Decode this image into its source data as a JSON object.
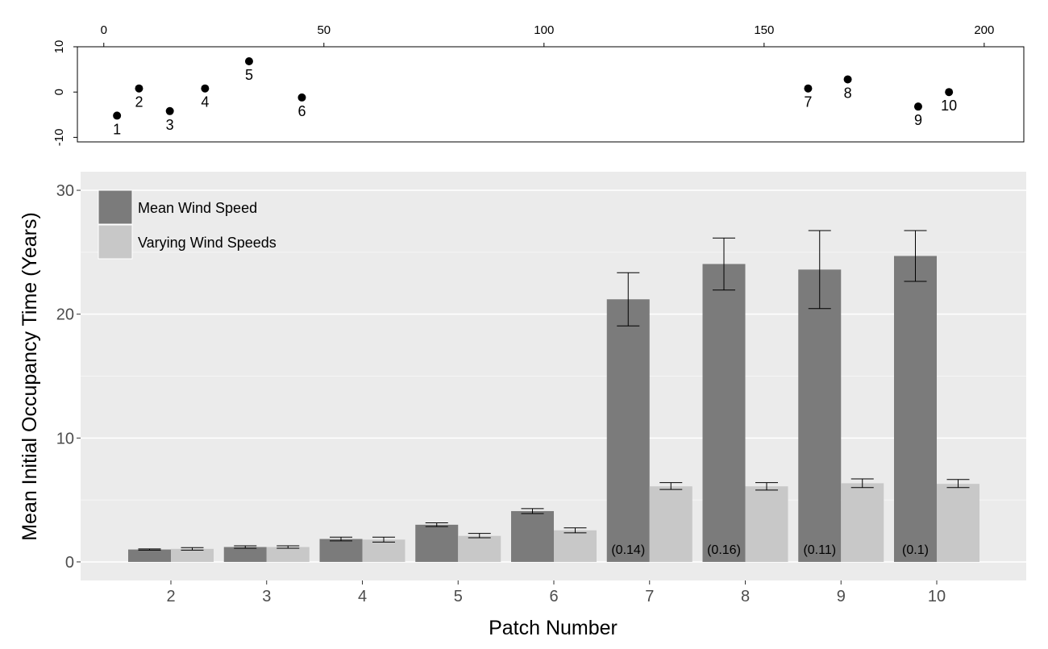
{
  "chart_data": [
    {
      "type": "scatter",
      "x_ticks": [
        "0",
        "50",
        "100",
        "150",
        "200"
      ],
      "y_ticks": [
        "10",
        "0",
        "-10"
      ],
      "xlim": [
        -6,
        209
      ],
      "ylim": [
        -11,
        10
      ],
      "points": [
        {
          "label": "1",
          "x": 3,
          "y": -5.2
        },
        {
          "label": "2",
          "x": 8,
          "y": 0.8
        },
        {
          "label": "3",
          "x": 15,
          "y": -4.2
        },
        {
          "label": "4",
          "x": 23,
          "y": 0.8
        },
        {
          "label": "5",
          "x": 33,
          "y": 6.8
        },
        {
          "label": "6",
          "x": 45,
          "y": -1.2
        },
        {
          "label": "7",
          "x": 160,
          "y": 0.8
        },
        {
          "label": "8",
          "x": 169,
          "y": 2.8
        },
        {
          "label": "9",
          "x": 185,
          "y": -3.2
        },
        {
          "label": "10",
          "x": 192,
          "y": 0
        }
      ]
    },
    {
      "type": "bar",
      "xlabel": "Patch Number",
      "ylabel": "Mean Initial Occupancy Time (Years)",
      "ylim": [
        -1.5,
        31.5
      ],
      "y_ticks": [
        "0",
        "10",
        "20",
        "30"
      ],
      "grid": true,
      "legend_position": "top-left",
      "categories": [
        "2",
        "3",
        "4",
        "5",
        "6",
        "7",
        "8",
        "9",
        "10"
      ],
      "series": [
        {
          "name": "Mean Wind Speed",
          "color": "#7b7b7b",
          "values": [
            1.0,
            1.2,
            1.85,
            3.0,
            4.1,
            21.2,
            24.05,
            23.6,
            24.7
          ],
          "err_low": [
            0.95,
            1.1,
            1.7,
            2.85,
            3.9,
            19.05,
            21.95,
            20.45,
            22.65
          ],
          "err_high": [
            1.05,
            1.3,
            2.0,
            3.15,
            4.3,
            23.35,
            26.15,
            26.75,
            26.75
          ],
          "annotations": [
            "",
            "",
            "",
            "",
            "",
            "(0.14)",
            "(0.16)",
            "(0.11)",
            "(0.1)"
          ]
        },
        {
          "name": "Varying Wind Speeds",
          "color": "#c8c8c8",
          "values": [
            1.05,
            1.2,
            1.8,
            2.1,
            2.55,
            6.1,
            6.1,
            6.35,
            6.3
          ],
          "err_low": [
            0.95,
            1.1,
            1.6,
            1.95,
            2.35,
            5.85,
            5.8,
            6.0,
            6.0
          ],
          "err_high": [
            1.15,
            1.3,
            2.0,
            2.3,
            2.75,
            6.4,
            6.4,
            6.7,
            6.65
          ]
        }
      ]
    }
  ]
}
